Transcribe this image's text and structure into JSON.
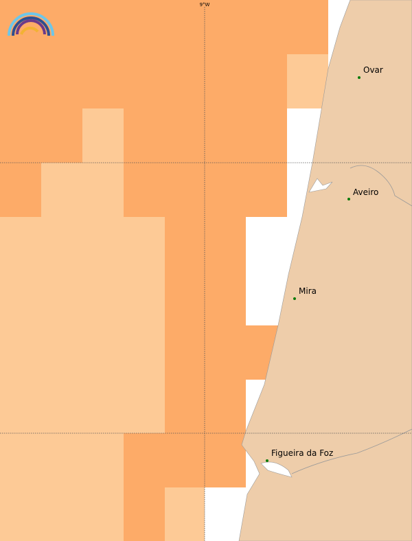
{
  "map": {
    "graticule_label": "9°W",
    "places": [
      {
        "label": "Ovar"
      },
      {
        "label": "Aveiro"
      },
      {
        "label": "Mira"
      },
      {
        "label": "Figueira da Foz"
      }
    ]
  }
}
